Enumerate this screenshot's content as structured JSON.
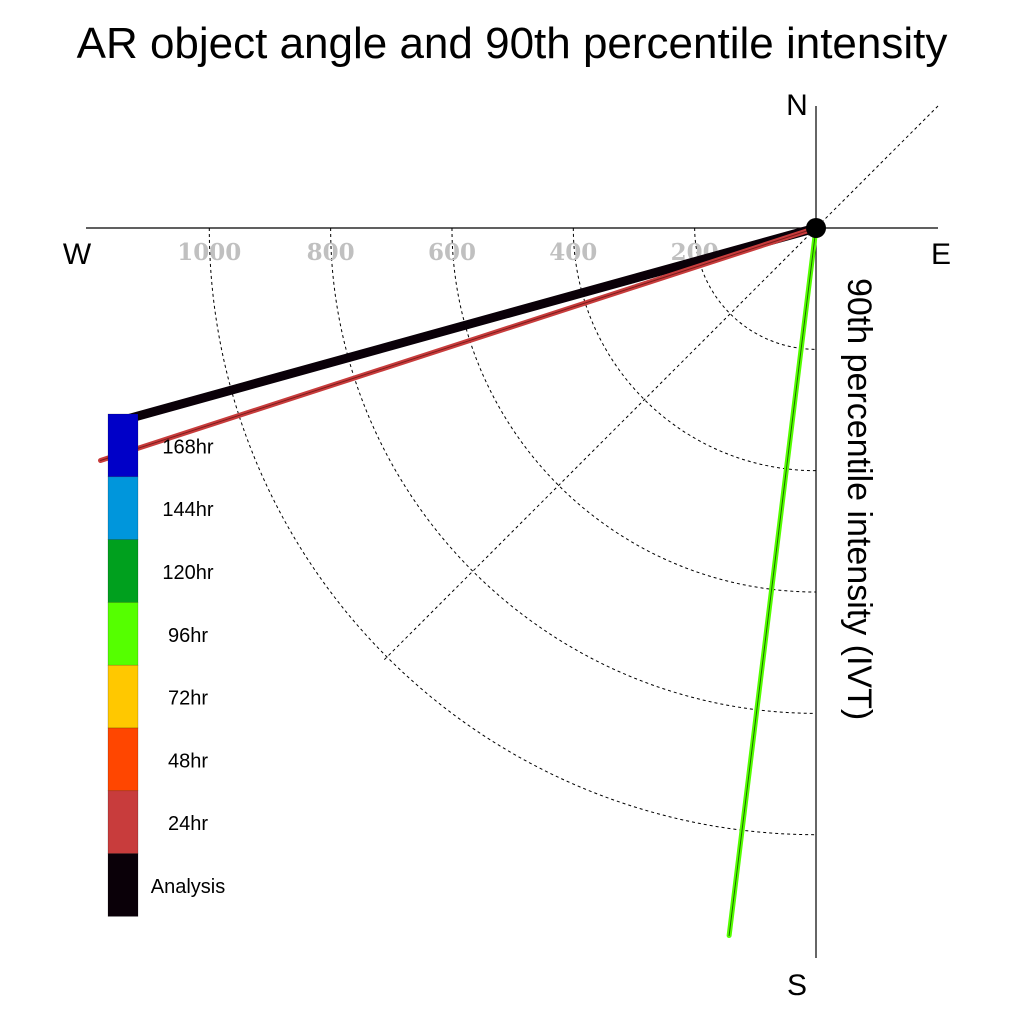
{
  "chart_data": {
    "type": "polar-quadrant",
    "title": "AR object angle and 90th percentile intensity",
    "ylabel": "90th percentile intensity (IVT)",
    "compass": {
      "north": "N",
      "south": "S",
      "east": "E",
      "west": "W"
    },
    "radial_ticks": [
      "200",
      "400",
      "600",
      "800",
      "1000"
    ],
    "radial_range": [
      0,
      1200
    ],
    "grid": true,
    "legend_placement": "bottom-left",
    "legend": [
      {
        "label": "168hr",
        "color": "#0000c8"
      },
      {
        "label": "144hr",
        "color": "#0096dc"
      },
      {
        "label": "120hr",
        "color": "#00a01e"
      },
      {
        "label": "96hr",
        "color": "#55ff00"
      },
      {
        "label": "72hr",
        "color": "#ffc800"
      },
      {
        "label": "48hr",
        "color": "#ff4600"
      },
      {
        "label": "24hr",
        "color": "#c83c3c"
      },
      {
        "label": "Analysis",
        "color": "#0a0008"
      }
    ],
    "series": [
      {
        "name": "Analysis",
        "color": "#0a0008",
        "angle_deg": 254.5,
        "intensity": 1190
      },
      {
        "name": "24hr",
        "color": "#c83c3c",
        "angle_deg": 252.0,
        "intensity": 1240
      },
      {
        "name": "96hr",
        "color": "#55ff00",
        "angle_deg": 187.0,
        "intensity": 1175
      }
    ]
  }
}
